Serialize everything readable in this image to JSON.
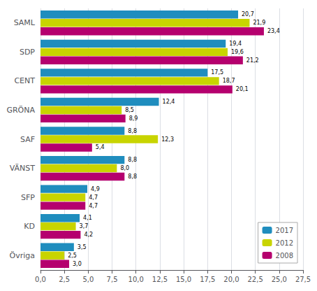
{
  "chart_data": {
    "type": "bar",
    "orientation": "horizontal",
    "categories": [
      "SAML",
      "SDP",
      "CENT",
      "GRÖNA",
      "SAF",
      "VÄNST",
      "SFP",
      "KD",
      "Övriga"
    ],
    "series": [
      {
        "name": "2017",
        "color": "#1f8dbe",
        "values": [
          20.7,
          19.4,
          17.5,
          12.4,
          8.8,
          8.8,
          4.9,
          4.1,
          3.5
        ],
        "value_labels": [
          "20,7",
          "19,4",
          "17,5",
          "12,4",
          "8,8",
          "8,8",
          "4,9",
          "4,1",
          "3,5"
        ]
      },
      {
        "name": "2012",
        "color": "#c8d400",
        "values": [
          21.9,
          19.6,
          18.7,
          8.5,
          12.3,
          8.0,
          4.7,
          3.7,
          2.5
        ],
        "value_labels": [
          "21,9",
          "19,6",
          "18,7",
          "8,5",
          "12,3",
          "8,0",
          "4,7",
          "3,7",
          "2,5"
        ]
      },
      {
        "name": "2008",
        "color": "#b5006e",
        "values": [
          23.4,
          21.2,
          20.1,
          8.9,
          5.4,
          8.8,
          4.7,
          4.2,
          3.0
        ],
        "value_labels": [
          "23,4",
          "21,2",
          "20,1",
          "8,9",
          "5,4",
          "8,8",
          "4,7",
          "4,2",
          "3,0"
        ]
      }
    ],
    "xlim": [
      0,
      27.5
    ],
    "xticks": [
      {
        "value": 0.0,
        "label": "0,0"
      },
      {
        "value": 2.5,
        "label": "2,5"
      },
      {
        "value": 5.0,
        "label": "5,0"
      },
      {
        "value": 7.5,
        "label": "7,5"
      },
      {
        "value": 10.0,
        "label": "10,0"
      },
      {
        "value": 12.5,
        "label": "12,5"
      },
      {
        "value": 15.0,
        "label": "15,0"
      },
      {
        "value": 17.5,
        "label": "17,5"
      },
      {
        "value": 20.0,
        "label": "20,0"
      },
      {
        "value": 22.5,
        "label": "22,5"
      },
      {
        "value": 25.0,
        "label": "25,0"
      },
      {
        "value": 27.5,
        "label": "27,5"
      }
    ],
    "grid": true,
    "legend": "lower right",
    "data_labels": true
  }
}
